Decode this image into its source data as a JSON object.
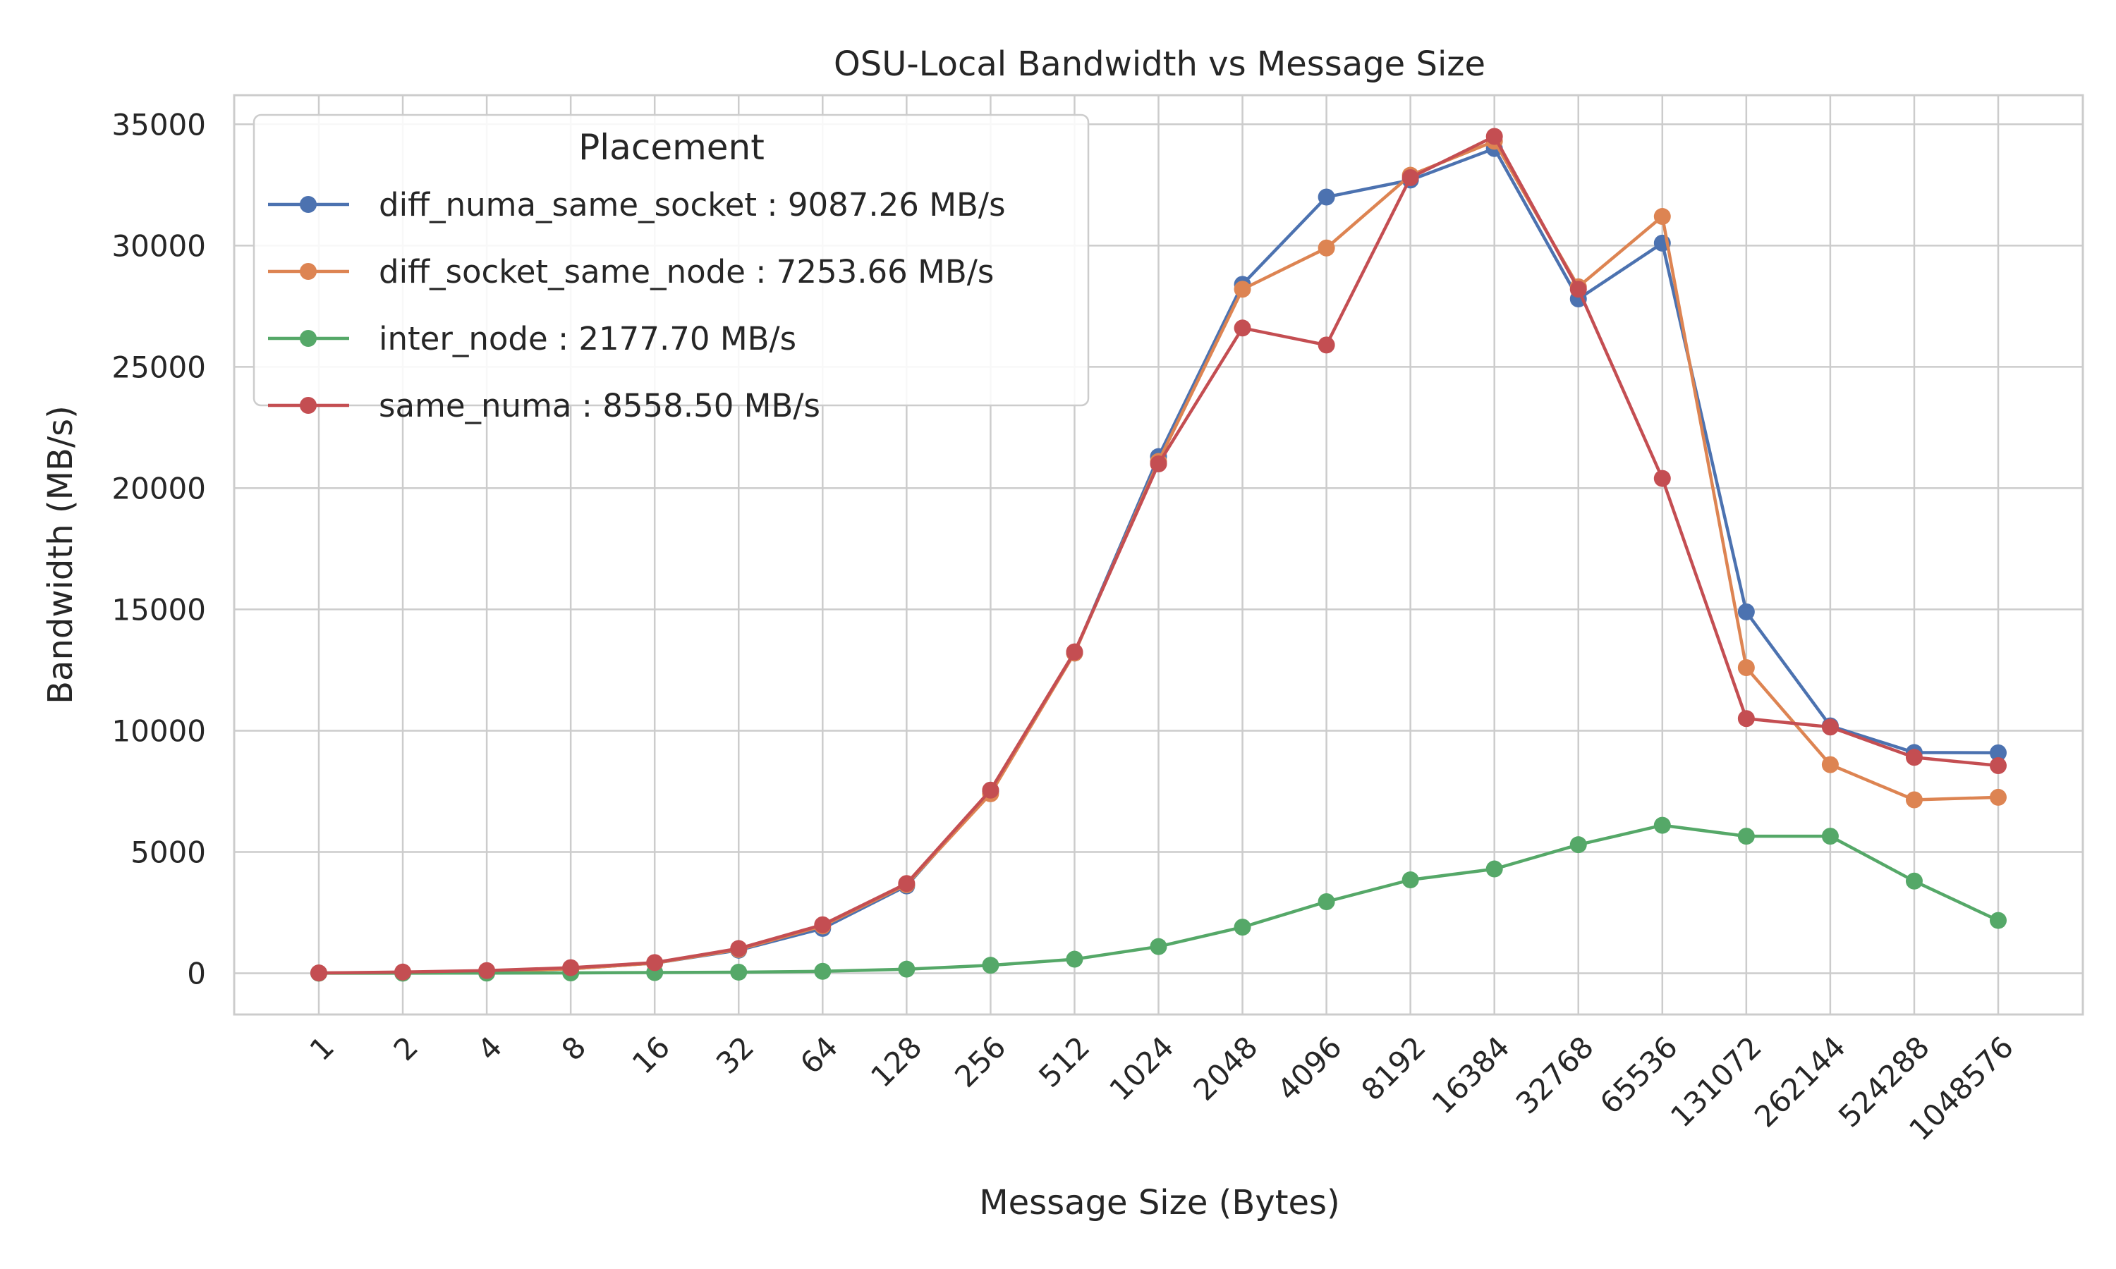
{
  "chart_data": {
    "type": "line",
    "title": "OSU-Local Bandwidth vs Message Size",
    "xlabel": "Message Size (Bytes)",
    "ylabel": "Bandwidth (MB/s)",
    "x_scale": "log2",
    "categories": [
      "1",
      "2",
      "4",
      "8",
      "16",
      "32",
      "64",
      "128",
      "256",
      "512",
      "1024",
      "2048",
      "4096",
      "8192",
      "16384",
      "32768",
      "65536",
      "131072",
      "262144",
      "524288",
      "1048576"
    ],
    "ylim": [
      -1700,
      36200
    ],
    "yticks": [
      0,
      5000,
      10000,
      15000,
      20000,
      25000,
      30000,
      35000
    ],
    "grid": true,
    "legend": {
      "title": "Placement",
      "placement": "top-left"
    },
    "series": [
      {
        "name": "diff_numa_same_socket : 9087.26 MB/s",
        "color": "#4c72b0",
        "values": [
          10,
          30,
          70,
          180,
          420,
          950,
          1850,
          3600,
          7500,
          13200,
          21300,
          28400,
          32000,
          32700,
          34000,
          27800,
          30100,
          14900,
          10200,
          9100,
          9087.26
        ]
      },
      {
        "name": "diff_socket_same_node : 7253.66 MB/s",
        "color": "#dd8452",
        "values": [
          10,
          30,
          70,
          180,
          420,
          980,
          1950,
          3650,
          7400,
          13200,
          21100,
          28200,
          29900,
          32900,
          34300,
          28300,
          31200,
          12600,
          8600,
          7150,
          7253.66
        ]
      },
      {
        "name": "inter_node : 2177.70 MB/s",
        "color": "#55a868",
        "values": [
          2,
          4,
          8,
          15,
          30,
          45,
          80,
          170,
          330,
          580,
          1100,
          1900,
          2950,
          3850,
          4300,
          5300,
          6100,
          5650,
          5650,
          3800,
          2177.7
        ]
      },
      {
        "name": "same_numa : 8558.50 MB/s",
        "color": "#c44e52",
        "values": [
          12,
          50,
          110,
          230,
          440,
          1020,
          2000,
          3700,
          7550,
          13250,
          21000,
          26600,
          25900,
          32800,
          34500,
          28200,
          20400,
          10500,
          10150,
          8900,
          8558.5
        ]
      }
    ]
  }
}
